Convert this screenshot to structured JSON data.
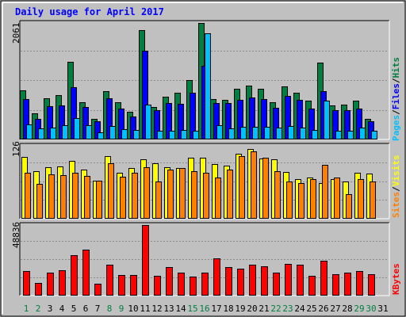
{
  "title": "Daily usage for April 2017",
  "colors": {
    "background": "#c0c0c0",
    "title": "#0000ff",
    "hits": "#008040",
    "files": "#0000ff",
    "pages": "#00c0ff",
    "visits": "#ffff00",
    "sites": "#ff8000",
    "kbytes": "#ff0000",
    "weekday": "#000000",
    "weekend": "#008040"
  },
  "chart_data": [
    {
      "type": "bar",
      "name": "hits-files-pages",
      "ymax_label": "2061",
      "ylim": [
        0,
        2061
      ],
      "legend": [
        "Pages",
        "/",
        "Files",
        "/",
        "Hits"
      ],
      "categories": [
        "1",
        "2",
        "3",
        "4",
        "5",
        "6",
        "7",
        "8",
        "9",
        "10",
        "11",
        "12",
        "13",
        "14",
        "15",
        "16",
        "17",
        "18",
        "19",
        "20",
        "21",
        "22",
        "23",
        "24",
        "25",
        "26",
        "27",
        "28",
        "29",
        "30",
        "31"
      ],
      "series": [
        {
          "name": "Hits",
          "values": [
            863,
            460,
            734,
            791,
            1379,
            662,
            361,
            858,
            652,
            494,
            1939,
            575,
            763,
            827,
            1050,
            2061,
            710,
            702,
            900,
            960,
            900,
            661,
            945,
            830,
            686,
            1361,
            600,
            616,
            680,
            361,
            0
          ]
        },
        {
          "name": "Files",
          "values": [
            713,
            364,
            595,
            602,
            923,
            575,
            325,
            734,
            544,
            411,
            1575,
            517,
            645,
            631,
            828,
            1300,
            642,
            641,
            696,
            743,
            710,
            560,
            767,
            702,
            542,
            858,
            525,
            517,
            540,
            324,
            0
          ]
        },
        {
          "name": "Pages",
          "values": [
            270,
            193,
            206,
            257,
            380,
            246,
            130,
            235,
            176,
            165,
            620,
            151,
            151,
            173,
            159,
            1878,
            255,
            190,
            220,
            231,
            229,
            209,
            243,
            216,
            171,
            682,
            152,
            160,
            210,
            151,
            0
          ]
        }
      ]
    },
    {
      "type": "bar",
      "name": "visits-sites",
      "ymax_label": "126",
      "ylim": [
        0,
        126
      ],
      "legend": [
        "Sites",
        "/",
        "Visits"
      ],
      "categories": [
        "1",
        "2",
        "3",
        "4",
        "5",
        "6",
        "7",
        "8",
        "9",
        "10",
        "11",
        "12",
        "13",
        "14",
        "15",
        "16",
        "17",
        "18",
        "19",
        "20",
        "21",
        "22",
        "23",
        "24",
        "25",
        "26",
        "27",
        "28",
        "29",
        "30",
        "31"
      ],
      "series": [
        {
          "name": "Visits",
          "values": [
            107,
            82,
            89,
            90,
            100,
            85,
            66,
            108,
            80,
            88,
            103,
            96,
            89,
            88,
            106,
            106,
            94,
            92,
            112,
            120,
            104,
            103,
            81,
            68,
            71,
            62,
            68,
            65,
            79,
            78,
            0
          ]
        },
        {
          "name": "Sites",
          "values": [
            80,
            60,
            77,
            75,
            80,
            74,
            66,
            96,
            73,
            79,
            89,
            65,
            85,
            88,
            82,
            80,
            71,
            85,
            108,
            116,
            105,
            82,
            65,
            62,
            69,
            93,
            71,
            43,
            69,
            65,
            0
          ]
        }
      ]
    },
    {
      "type": "bar",
      "name": "kbytes",
      "ymax_label": "48836",
      "ylim": [
        0,
        48836
      ],
      "legend": [
        "KBytes"
      ],
      "categories": [
        "1",
        "2",
        "3",
        "4",
        "5",
        "6",
        "7",
        "8",
        "9",
        "10",
        "11",
        "12",
        "13",
        "14",
        "15",
        "16",
        "17",
        "18",
        "19",
        "20",
        "21",
        "22",
        "23",
        "24",
        "25",
        "26",
        "27",
        "28",
        "29",
        "30",
        "31"
      ],
      "series": [
        {
          "name": "KBytes",
          "values": [
            17000,
            9000,
            16000,
            17500,
            28000,
            32000,
            8500,
            21500,
            14500,
            14500,
            48836,
            13500,
            19500,
            16000,
            13000,
            16000,
            26000,
            19500,
            18500,
            21500,
            20500,
            16000,
            22000,
            21500,
            13500,
            24000,
            15000,
            16000,
            17000,
            15000,
            0
          ]
        }
      ]
    }
  ],
  "day_labels": [
    {
      "t": "1",
      "weekend": true
    },
    {
      "t": "2",
      "weekend": true
    },
    {
      "t": "3",
      "weekend": false
    },
    {
      "t": "4",
      "weekend": false
    },
    {
      "t": "5",
      "weekend": false
    },
    {
      "t": "6",
      "weekend": false
    },
    {
      "t": "7",
      "weekend": false
    },
    {
      "t": "8",
      "weekend": true
    },
    {
      "t": "9",
      "weekend": true
    },
    {
      "t": "10",
      "weekend": false
    },
    {
      "t": "11",
      "weekend": false
    },
    {
      "t": "12",
      "weekend": false
    },
    {
      "t": "13",
      "weekend": false
    },
    {
      "t": "14",
      "weekend": false
    },
    {
      "t": "15",
      "weekend": true
    },
    {
      "t": "16",
      "weekend": true
    },
    {
      "t": "17",
      "weekend": false
    },
    {
      "t": "18",
      "weekend": false
    },
    {
      "t": "19",
      "weekend": false
    },
    {
      "t": "20",
      "weekend": false
    },
    {
      "t": "21",
      "weekend": false
    },
    {
      "t": "22",
      "weekend": true
    },
    {
      "t": "23",
      "weekend": true
    },
    {
      "t": "24",
      "weekend": false
    },
    {
      "t": "25",
      "weekend": false
    },
    {
      "t": "26",
      "weekend": false
    },
    {
      "t": "27",
      "weekend": false
    },
    {
      "t": "28",
      "weekend": false
    },
    {
      "t": "29",
      "weekend": true
    },
    {
      "t": "30",
      "weekend": true
    },
    {
      "t": "31",
      "weekend": false
    }
  ]
}
